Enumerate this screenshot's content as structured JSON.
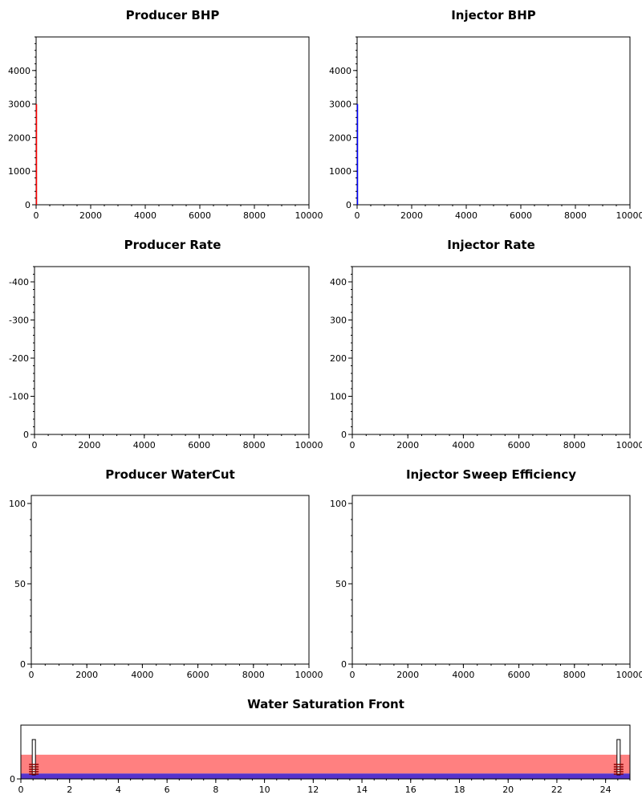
{
  "chart_data": [
    {
      "id": "producer-bhp",
      "type": "line",
      "title": "Producer BHP",
      "xlim": [
        0,
        10000
      ],
      "ylim": [
        0,
        5000
      ],
      "xticks": [
        0,
        2000,
        4000,
        6000,
        8000,
        10000
      ],
      "xtick_labels": [
        "0",
        "2000",
        "4000",
        "6000",
        "8000",
        "10000"
      ],
      "yticks": [
        0,
        1000,
        2000,
        3000,
        4000
      ],
      "ytick_labels": [
        "0",
        "1000",
        "2000",
        "3000",
        "4000"
      ],
      "series": [
        {
          "color": "#ff0000",
          "x": [
            0,
            0
          ],
          "y": [
            0,
            3000
          ]
        }
      ]
    },
    {
      "id": "injector-bhp",
      "type": "line",
      "title": "Injector BHP",
      "xlim": [
        0,
        10000
      ],
      "ylim": [
        0,
        5000
      ],
      "xticks": [
        0,
        2000,
        4000,
        6000,
        8000,
        10000
      ],
      "xtick_labels": [
        "0",
        "2000",
        "4000",
        "6000",
        "8000",
        "10000"
      ],
      "yticks": [
        0,
        1000,
        2000,
        3000,
        4000
      ],
      "ytick_labels": [
        "0",
        "1000",
        "2000",
        "3000",
        "4000"
      ],
      "series": [
        {
          "color": "#0000ff",
          "x": [
            0,
            0
          ],
          "y": [
            0,
            3000
          ]
        }
      ]
    },
    {
      "id": "producer-rate",
      "type": "line",
      "title": "Producer Rate",
      "xlim": [
        0,
        10000
      ],
      "ylim": [
        0,
        440
      ],
      "xticks": [
        0,
        2000,
        4000,
        6000,
        8000,
        10000
      ],
      "xtick_labels": [
        "0",
        "2000",
        "4000",
        "6000",
        "8000",
        "10000"
      ],
      "yticks": [
        0,
        100,
        200,
        300,
        400
      ],
      "ytick_labels": [
        "0",
        "-100",
        "-200",
        "-300",
        "-400"
      ],
      "series": []
    },
    {
      "id": "injector-rate",
      "type": "line",
      "title": "Injector Rate",
      "xlim": [
        0,
        10000
      ],
      "ylim": [
        0,
        440
      ],
      "xticks": [
        0,
        2000,
        4000,
        6000,
        8000,
        10000
      ],
      "xtick_labels": [
        "0",
        "2000",
        "4000",
        "6000",
        "8000",
        "10000"
      ],
      "yticks": [
        0,
        100,
        200,
        300,
        400
      ],
      "ytick_labels": [
        "0",
        "100",
        "200",
        "300",
        "400"
      ],
      "series": []
    },
    {
      "id": "producer-watercut",
      "type": "line",
      "title": "Producer WaterCut",
      "xlim": [
        0,
        10000
      ],
      "ylim": [
        0,
        105
      ],
      "xticks": [
        0,
        2000,
        4000,
        6000,
        8000,
        10000
      ],
      "xtick_labels": [
        "0",
        "2000",
        "4000",
        "6000",
        "8000",
        "10000"
      ],
      "yticks": [
        0,
        50,
        100
      ],
      "ytick_labels": [
        "0",
        "50",
        "100"
      ],
      "series": []
    },
    {
      "id": "injector-sweep-efficiency",
      "type": "line",
      "title": "Injector Sweep Efficiency",
      "xlim": [
        0,
        10000
      ],
      "ylim": [
        0,
        105
      ],
      "xticks": [
        0,
        2000,
        4000,
        6000,
        8000,
        10000
      ],
      "xtick_labels": [
        "0",
        "2000",
        "4000",
        "6000",
        "8000",
        "10000"
      ],
      "yticks": [
        0,
        50,
        100
      ],
      "ytick_labels": [
        "0",
        "50",
        "100"
      ],
      "series": []
    },
    {
      "id": "water-saturation-front",
      "type": "area",
      "title": "Water Saturation Front",
      "xlim": [
        0,
        25
      ],
      "ylim": [
        0,
        1
      ],
      "xticks": [
        0,
        2,
        4,
        6,
        8,
        10,
        12,
        14,
        16,
        18,
        20,
        22,
        24
      ],
      "xtick_labels": [
        "0",
        "2",
        "4",
        "6",
        "8",
        "10",
        "12",
        "14",
        "16",
        "18",
        "20",
        "22",
        "24"
      ],
      "yticks": [
        0
      ],
      "ytick_labels": [
        "0"
      ],
      "bands": [
        {
          "name": "oil",
          "color": "#ff8080",
          "y0": 0.1,
          "y1": 0.45
        },
        {
          "name": "water",
          "color": "#5533cc",
          "y0": 0,
          "y1": 0.1
        }
      ],
      "wells": [
        {
          "name": "producer",
          "x": 0.5
        },
        {
          "name": "injector",
          "x": 24.5
        }
      ]
    }
  ]
}
